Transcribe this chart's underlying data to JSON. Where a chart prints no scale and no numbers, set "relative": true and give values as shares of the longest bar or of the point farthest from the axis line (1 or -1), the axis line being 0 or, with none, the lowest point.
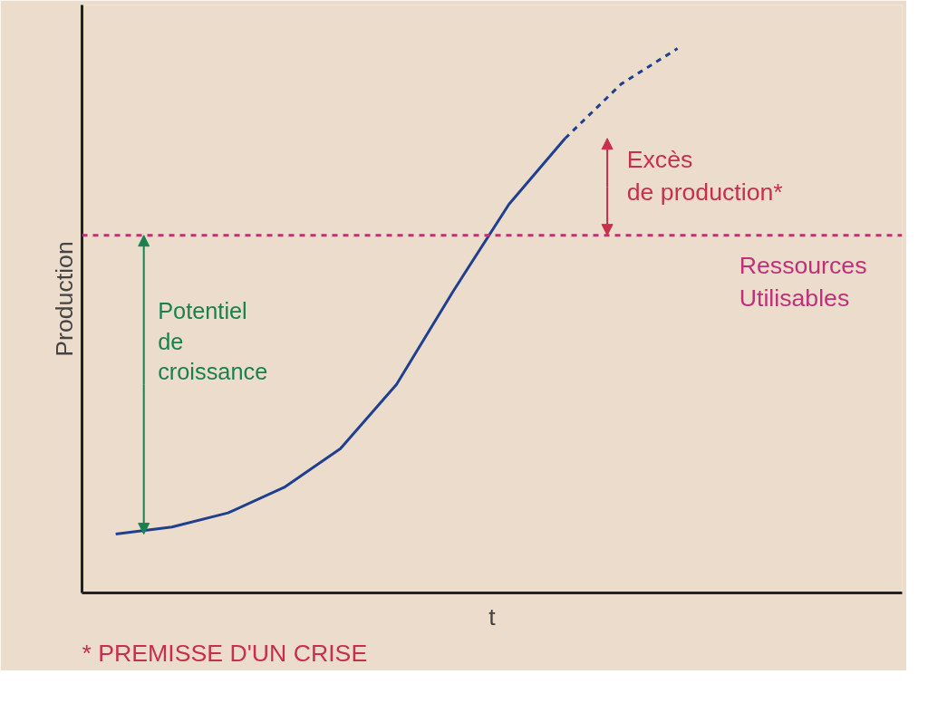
{
  "chart_data": {
    "type": "line",
    "relative": true,
    "xlabel": "t",
    "ylabel": "Production",
    "grid": false,
    "categories": [
      null,
      null,
      null,
      null,
      null,
      null,
      null,
      null,
      null,
      null,
      null
    ],
    "series": [
      {
        "color": "#1f3f8f",
        "line_style": "solid",
        "values": [
          0.108,
          0.121,
          0.147,
          0.194,
          0.265,
          0.383,
          0.553,
          0.714,
          0.835,
          null,
          null
        ]
      },
      {
        "color": "#1f3f8f",
        "line_style": "dashed",
        "values": [
          null,
          null,
          null,
          null,
          null,
          null,
          null,
          null,
          0.835,
          0.935,
          1.0
        ]
      }
    ],
    "ref_lines": [
      {
        "axis": "y",
        "value": 0.657,
        "label": "Ressources\nUtilisables",
        "color": "#c0307a",
        "line_style": "dashed"
      }
    ],
    "annotations": [
      "Potentiel\nde\ncroissance",
      "Excès\nde production*",
      "* PREMISSE D'UN CRISE"
    ]
  }
}
